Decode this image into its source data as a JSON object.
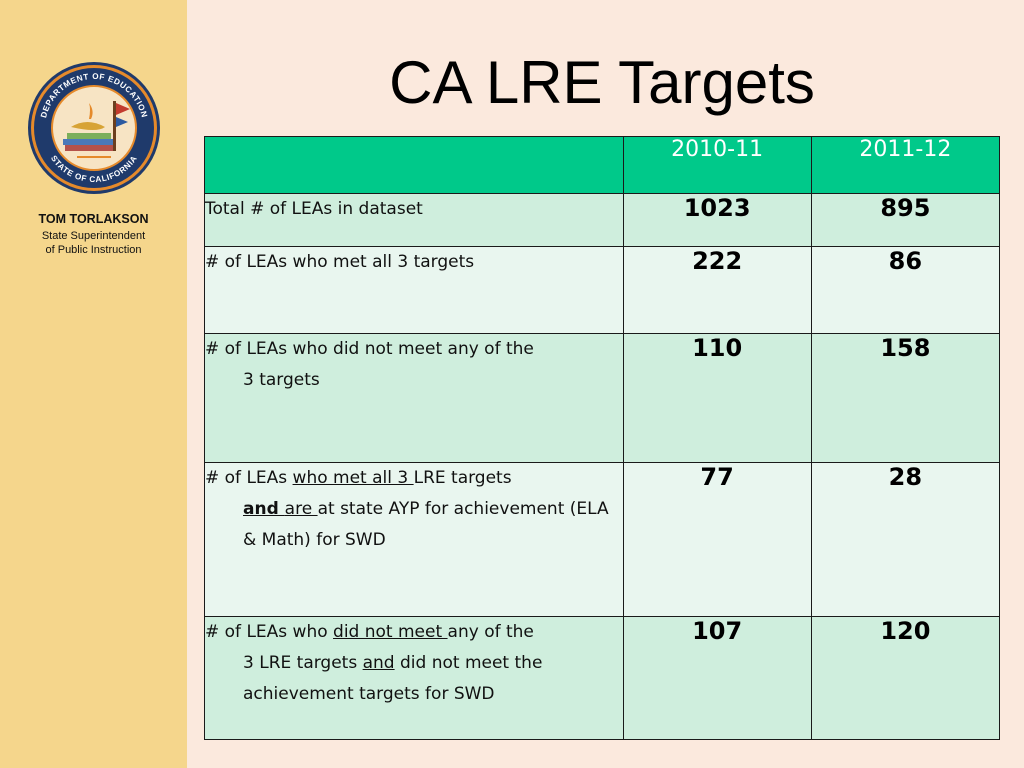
{
  "sidebar": {
    "seal_top_text": "DEPARTMENT OF EDUCATION",
    "seal_bottom_text": "STATE OF CALIFORNIA",
    "person_name": "TOM TORLAKSON",
    "person_title_line1": "State Superintendent",
    "person_title_line2": "of Public Instruction"
  },
  "slide": {
    "title": "CA LRE Targets"
  },
  "table": {
    "columns": [
      "",
      "2010-11",
      "2011-12"
    ],
    "rows": [
      {
        "label_parts": [
          "Total # of LEAs in dataset"
        ],
        "values": [
          "1023",
          "895"
        ]
      },
      {
        "label_parts": [
          "# of LEAs who met all 3 targets"
        ],
        "values": [
          "222",
          "86"
        ]
      },
      {
        "label_first_line": "# of LEAs who did not meet any of the",
        "label_rest": "3 targets",
        "values": [
          "110",
          "158"
        ]
      },
      {
        "label_line1_a": "# of LEAs ",
        "label_line1_u": "who met all 3 ",
        "label_line1_b": "LRE targets",
        "label_and": "and ",
        "label_are_u": "are ",
        "label_rest": "at state AYP for achievement (ELA & Math) for SWD",
        "values": [
          "77",
          "28"
        ]
      },
      {
        "label_line1_a": "# of LEAs who ",
        "label_line1_u": "did not meet ",
        "label_line1_b": "any of the",
        "label_line2_a": "3 LRE targets ",
        "label_and": "and",
        "label_line2_b": " did not meet the achievement targets for SWD",
        "values": [
          "107",
          "120"
        ]
      }
    ]
  },
  "colors": {
    "sidebar_bg": "#f5d68c",
    "slide_bg": "#fbe9dd",
    "header_bg": "#00c98a",
    "row_dark": "#cfeedd",
    "row_light": "#e9f6ef"
  }
}
